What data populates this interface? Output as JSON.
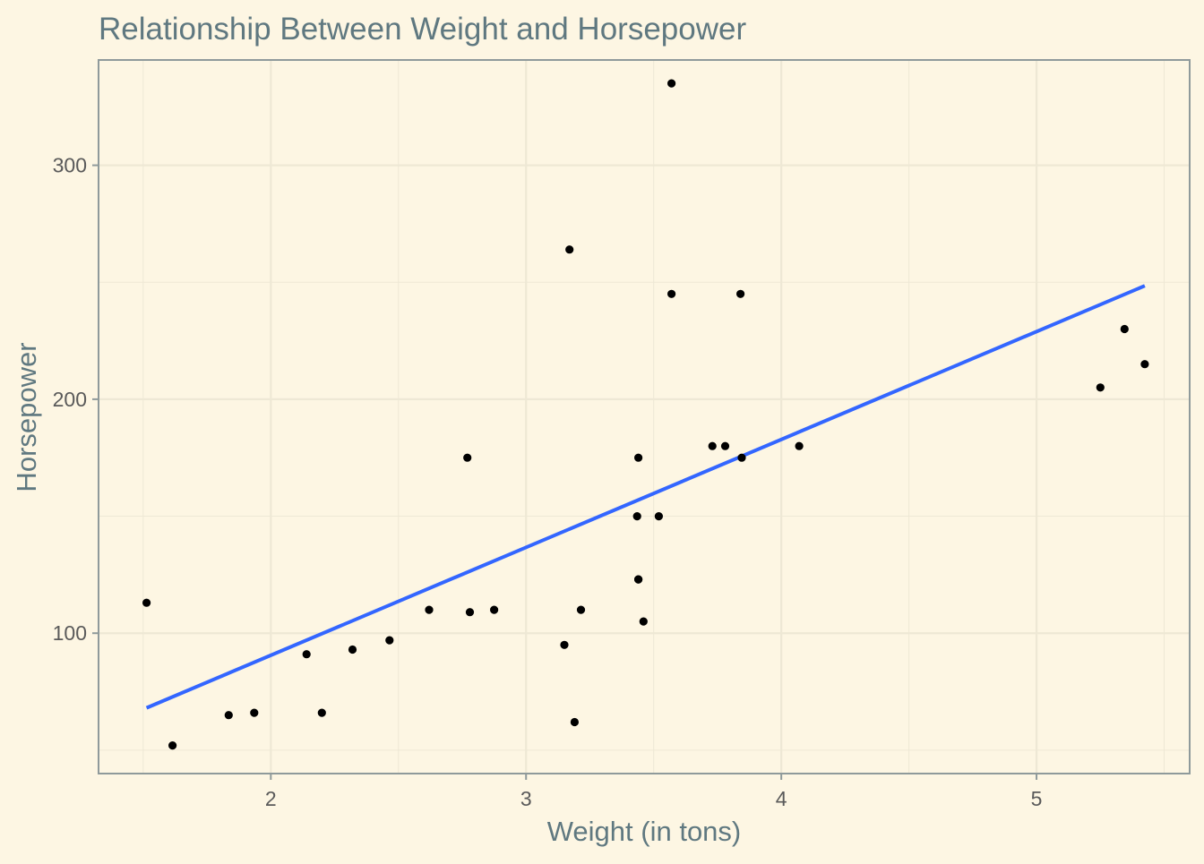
{
  "chart_data": {
    "type": "scatter",
    "title": "Relationship Between Weight and Horsepower",
    "xlabel": "Weight (in tons)",
    "ylabel": "Horsepower",
    "xlim": [
      1.325,
      5.6
    ],
    "ylim": [
      40,
      345
    ],
    "x_ticks": [
      2,
      3,
      4,
      5
    ],
    "y_ticks": [
      100,
      200,
      300
    ],
    "grid": true,
    "legend": "none",
    "colors": {
      "background": "#fdf6e3",
      "points": "#000000",
      "trend_line": "#3366ff",
      "title_text": "#5f7880",
      "axis_text": "#5a5a5a",
      "grid_major": "#eee8d5",
      "panel_border": "#8f9a9b"
    },
    "series": [
      {
        "type": "points",
        "x": [
          2.62,
          2.875,
          2.32,
          3.215,
          3.44,
          3.46,
          3.57,
          3.19,
          3.15,
          3.44,
          3.44,
          4.07,
          3.73,
          3.78,
          5.25,
          5.424,
          5.345,
          2.2,
          1.615,
          1.835,
          2.465,
          3.52,
          3.435,
          3.84,
          3.845,
          1.935,
          2.14,
          1.513,
          3.17,
          2.77,
          3.57,
          2.78
        ],
        "y": [
          110,
          110,
          93,
          110,
          175,
          105,
          245,
          62,
          95,
          123,
          123,
          180,
          180,
          180,
          205,
          215,
          230,
          66,
          52,
          65,
          97,
          150,
          150,
          245,
          175,
          66,
          91,
          113,
          264,
          175,
          335,
          109
        ]
      },
      {
        "type": "line",
        "x": [
          1.513,
          5.424
        ],
        "y": [
          68.1,
          248.5
        ]
      }
    ]
  }
}
